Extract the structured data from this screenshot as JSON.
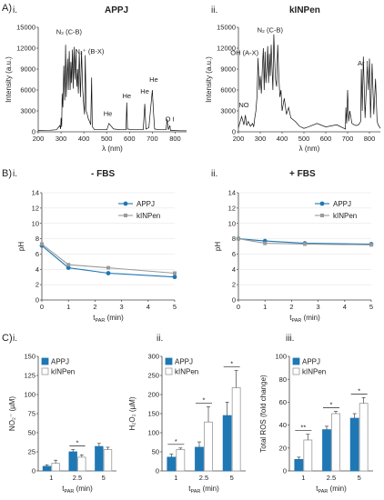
{
  "colors": {
    "appj": "#1f77b4",
    "kinpen": "#9a9a9a",
    "spectrum": "#111111",
    "axis": "#444444",
    "grid": "#e0e0e0",
    "error": "#444444"
  },
  "sections": {
    "A": "A)",
    "B": "B)",
    "C": "C)"
  },
  "chart_data": [
    {
      "id": "A-i",
      "type": "line",
      "panel_label": "i.",
      "title": "APPJ",
      "xlabel": "λ (nm)",
      "ylabel": "Intensity (a.u.)",
      "xlim": [
        200,
        850
      ],
      "ylim": [
        0,
        15000
      ],
      "xticks": [
        200,
        300,
        400,
        500,
        600,
        700,
        800
      ],
      "yticks": [
        0,
        3000,
        6000,
        9000,
        12000,
        15000
      ],
      "x": [
        200,
        250,
        280,
        295,
        298,
        300,
        303,
        305,
        308,
        312,
        316,
        320,
        323,
        326,
        329,
        332,
        336,
        340,
        343,
        346,
        350,
        353,
        357,
        361,
        365,
        369,
        372,
        376,
        380,
        385,
        390,
        395,
        399,
        403,
        406,
        410,
        415,
        420,
        425,
        430,
        434,
        437,
        440,
        447,
        470,
        501,
        510,
        530,
        560,
        585,
        588,
        591,
        610,
        640,
        660,
        667,
        672,
        685,
        700,
        705,
        710,
        730,
        750,
        760,
        765,
        770,
        777,
        780,
        790,
        820,
        850
      ],
      "y": [
        200,
        220,
        300,
        900,
        400,
        2000,
        700,
        5500,
        3500,
        9500,
        4500,
        12500,
        5000,
        8000,
        10500,
        6000,
        11600,
        6000,
        10000,
        7000,
        11800,
        6200,
        12200,
        7500,
        11700,
        6500,
        9000,
        5500,
        11400,
        5000,
        11600,
        6000,
        4000,
        2500,
        11000,
        3000,
        2500,
        1800,
        1500,
        1000,
        7800,
        800,
        600,
        300,
        300,
        300,
        1200,
        400,
        300,
        300,
        4200,
        400,
        300,
        300,
        300,
        4000,
        400,
        600,
        6000,
        3000,
        400,
        300,
        300,
        300,
        1800,
        300,
        900,
        200,
        200,
        150,
        150
      ],
      "annotations": [
        {
          "text": "N₂ (C-B)",
          "x": 335,
          "y": 14000
        },
        {
          "text": "N₂⁺ (B-X)",
          "x": 425,
          "y": 11200
        },
        {
          "text": "He",
          "x": 505,
          "y": 2300
        },
        {
          "text": "He",
          "x": 588,
          "y": 4800
        },
        {
          "text": "He",
          "x": 667,
          "y": 5500
        },
        {
          "text": "He",
          "x": 706,
          "y": 7200
        },
        {
          "text": "O I",
          "x": 777,
          "y": 1500
        }
      ]
    },
    {
      "id": "A-ii",
      "type": "line",
      "panel_label": "ii.",
      "title": "kINPen",
      "xlabel": "λ (nm)",
      "ylabel": "Intensity (a.u.)",
      "xlim": [
        200,
        850
      ],
      "ylim": [
        0,
        15000
      ],
      "xticks": [
        200,
        300,
        400,
        500,
        600,
        700,
        800
      ],
      "yticks": [
        0,
        3000,
        6000,
        9000,
        12000,
        15000
      ],
      "x": [
        200,
        215,
        225,
        232,
        238,
        245,
        255,
        265,
        270,
        275,
        280,
        285,
        290,
        295,
        300,
        305,
        310,
        314,
        318,
        322,
        326,
        330,
        334,
        338,
        342,
        346,
        350,
        354,
        358,
        362,
        366,
        370,
        375,
        380,
        385,
        390,
        395,
        400,
        410,
        420,
        430,
        440,
        460,
        480,
        500,
        520,
        560,
        600,
        650,
        690,
        692,
        696,
        700,
        705,
        710,
        720,
        730,
        740,
        750,
        760,
        763,
        767,
        772,
        780,
        790,
        795,
        800,
        805,
        812,
        820,
        828,
        835,
        840,
        850
      ],
      "y": [
        600,
        2200,
        1000,
        2400,
        900,
        1500,
        800,
        1200,
        700,
        2000,
        3000,
        5000,
        10600,
        6000,
        8000,
        5500,
        9500,
        12000,
        6000,
        11500,
        7000,
        9000,
        12300,
        7000,
        11200,
        8000,
        12500,
        9000,
        6000,
        14000,
        10500,
        7500,
        6500,
        12500,
        8000,
        5000,
        6000,
        3000,
        4800,
        2500,
        3500,
        2000,
        1500,
        800,
        500,
        700,
        1200,
        700,
        1000,
        400,
        3500,
        1200,
        6000,
        1500,
        3000,
        1200,
        1000,
        900,
        1000,
        1500,
        9000,
        3000,
        10800,
        2000,
        9500,
        6000,
        10500,
        2000,
        9800,
        2500,
        7600,
        1500,
        1000,
        500
      ],
      "annotations": [
        {
          "text": "NO",
          "x": 225,
          "y": 3500
        },
        {
          "text": "OH (A-X)",
          "x": 228,
          "y": 11000
        },
        {
          "text": "N₂ (C-B)",
          "x": 345,
          "y": 14300
        },
        {
          "text": "Ar I",
          "x": 770,
          "y": 9500
        }
      ]
    },
    {
      "id": "B-i",
      "type": "line",
      "panel_label": "i.",
      "title": "- FBS",
      "xlabel": "tPAR (min)",
      "ylabel": "pH",
      "xlim": [
        0,
        5
      ],
      "ylim": [
        0,
        14
      ],
      "xticks": [
        0,
        1,
        2,
        3,
        4,
        5
      ],
      "yticks": [
        0,
        2,
        4,
        6,
        8,
        10,
        12,
        14
      ],
      "x": [
        0,
        1,
        2.5,
        5
      ],
      "series": [
        {
          "name": "APPJ",
          "values": [
            7.1,
            4.2,
            3.5,
            3.0
          ]
        },
        {
          "name": "kINPen",
          "values": [
            7.3,
            4.6,
            4.2,
            3.5
          ]
        }
      ],
      "legend": "top-right"
    },
    {
      "id": "B-ii",
      "type": "line",
      "panel_label": "ii.",
      "title": "+ FBS",
      "xlabel": "tPAR (min)",
      "ylabel": "pH",
      "xlim": [
        0,
        5
      ],
      "ylim": [
        0,
        14
      ],
      "xticks": [
        0,
        1,
        2,
        3,
        4,
        5
      ],
      "yticks": [
        0,
        2,
        4,
        6,
        8,
        10,
        12,
        14
      ],
      "x": [
        0,
        1,
        2.5,
        5
      ],
      "series": [
        {
          "name": "APPJ",
          "values": [
            8.0,
            7.7,
            7.4,
            7.3
          ]
        },
        {
          "name": "kINPen",
          "values": [
            8.0,
            7.4,
            7.3,
            7.2
          ]
        }
      ],
      "legend": "top-right"
    },
    {
      "id": "C-i",
      "type": "bar",
      "panel_label": "i.",
      "xlabel": "tPAR (min)",
      "ylabel": "NO₂⁻ (µM)",
      "ylim": [
        0,
        150
      ],
      "yticks": [
        0,
        25,
        50,
        75,
        100,
        125,
        150
      ],
      "categories": [
        "1",
        "2.5",
        "5"
      ],
      "series": [
        {
          "name": "APPJ",
          "values": [
            6,
            25,
            32
          ],
          "errors": [
            2,
            3,
            4
          ]
        },
        {
          "name": "kINPen",
          "values": [
            10,
            18,
            28
          ],
          "errors": [
            4,
            3,
            3
          ]
        }
      ],
      "significance": [
        {
          "category": "2.5",
          "text": "*"
        }
      ],
      "legend": "top-left"
    },
    {
      "id": "C-ii",
      "type": "bar",
      "panel_label": "ii.",
      "xlabel": "tPAR (min)",
      "ylabel": "H₂O₂ (µM)",
      "ylim": [
        0,
        300
      ],
      "yticks": [
        0,
        50,
        100,
        150,
        200,
        250,
        300
      ],
      "categories": [
        "1",
        "2.5",
        "5"
      ],
      "series": [
        {
          "name": "APPJ",
          "values": [
            36,
            62,
            145
          ],
          "errors": [
            8,
            14,
            35
          ]
        },
        {
          "name": "kINPen",
          "values": [
            56,
            128,
            218
          ],
          "errors": [
            4,
            40,
            45
          ]
        }
      ],
      "significance": [
        {
          "category": "1",
          "text": "*"
        },
        {
          "category": "2.5",
          "text": "*"
        },
        {
          "category": "5",
          "text": "*"
        }
      ],
      "legend": "top-left"
    },
    {
      "id": "C-iii",
      "type": "bar",
      "panel_label": "iii.",
      "xlabel": "tPAR (min)",
      "ylabel": "Total ROS (fold change)",
      "ylim": [
        0,
        100
      ],
      "yticks": [
        0,
        20,
        40,
        60,
        80,
        100
      ],
      "categories": [
        "1",
        "2.5",
        "5"
      ],
      "series": [
        {
          "name": "APPJ",
          "values": [
            10,
            36,
            46
          ],
          "errors": [
            2,
            3,
            4
          ]
        },
        {
          "name": "kINPen",
          "values": [
            27,
            50,
            59
          ],
          "errors": [
            5,
            2,
            5
          ]
        }
      ],
      "significance": [
        {
          "category": "1",
          "text": "**"
        },
        {
          "category": "2.5",
          "text": "*"
        },
        {
          "category": "5",
          "text": "*"
        }
      ],
      "legend": "top-left"
    }
  ]
}
